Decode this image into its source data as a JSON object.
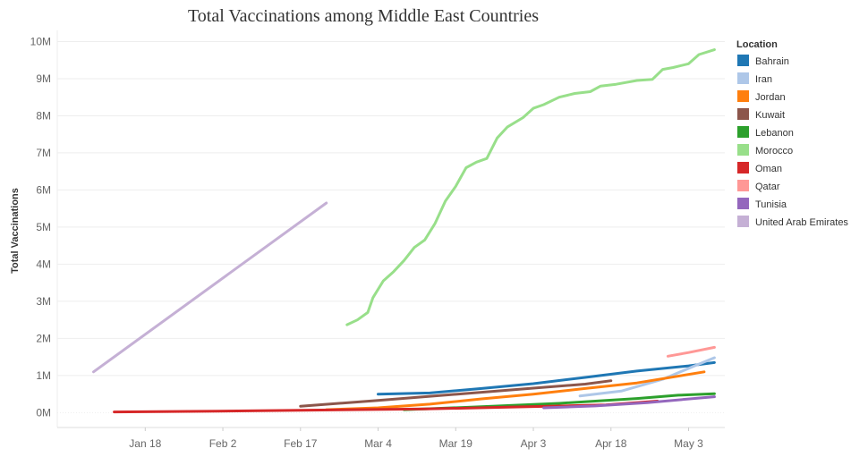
{
  "chart_data": {
    "type": "line",
    "title": "Total Vaccinations among Middle East Countries",
    "ylabel": "Total Vaccinations",
    "xlabel": "",
    "legend_title": "Location",
    "legend_position": "right",
    "grid": true,
    "y_ticks": [
      {
        "value": 0,
        "label": "0M"
      },
      {
        "value": 1000000,
        "label": "1M"
      },
      {
        "value": 2000000,
        "label": "2M"
      },
      {
        "value": 3000000,
        "label": "3M"
      },
      {
        "value": 4000000,
        "label": "4M"
      },
      {
        "value": 5000000,
        "label": "5M"
      },
      {
        "value": 6000000,
        "label": "6M"
      },
      {
        "value": 7000000,
        "label": "7M"
      },
      {
        "value": 8000000,
        "label": "8M"
      },
      {
        "value": 9000000,
        "label": "9M"
      },
      {
        "value": 10000000,
        "label": "10M"
      }
    ],
    "x_ticks": [
      {
        "value": "2021-01-18",
        "label": "Jan 18"
      },
      {
        "value": "2021-02-02",
        "label": "Feb 2"
      },
      {
        "value": "2021-02-17",
        "label": "Feb 17"
      },
      {
        "value": "2021-03-04",
        "label": "Mar 4"
      },
      {
        "value": "2021-03-19",
        "label": "Mar 19"
      },
      {
        "value": "2021-04-03",
        "label": "Apr 3"
      },
      {
        "value": "2021-04-18",
        "label": "Apr 18"
      },
      {
        "value": "2021-05-03",
        "label": "May 3"
      }
    ],
    "xlim": [
      "2021-01-01",
      "2021-05-10"
    ],
    "ylim": [
      -400000,
      10300000
    ],
    "series": [
      {
        "name": "Bahrain",
        "color": "#1f77b4",
        "points": [
          [
            "2021-03-04",
            500000
          ],
          [
            "2021-03-14",
            530000
          ],
          [
            "2021-03-24",
            650000
          ],
          [
            "2021-04-03",
            780000
          ],
          [
            "2021-04-13",
            950000
          ],
          [
            "2021-04-23",
            1120000
          ],
          [
            "2021-05-03",
            1260000
          ],
          [
            "2021-05-08",
            1350000
          ]
        ]
      },
      {
        "name": "Iran",
        "color": "#aec7e8",
        "points": [
          [
            "2021-04-12",
            450000
          ],
          [
            "2021-04-20",
            580000
          ],
          [
            "2021-04-28",
            900000
          ],
          [
            "2021-05-04",
            1250000
          ],
          [
            "2021-05-08",
            1480000
          ]
        ]
      },
      {
        "name": "Jordan",
        "color": "#ff7f0e",
        "points": [
          [
            "2021-02-22",
            80000
          ],
          [
            "2021-03-04",
            130000
          ],
          [
            "2021-03-14",
            230000
          ],
          [
            "2021-03-24",
            370000
          ],
          [
            "2021-04-03",
            500000
          ],
          [
            "2021-04-13",
            650000
          ],
          [
            "2021-04-23",
            800000
          ],
          [
            "2021-05-06",
            1100000
          ]
        ]
      },
      {
        "name": "Kuwait",
        "color": "#8c564b",
        "points": [
          [
            "2021-02-17",
            170000
          ],
          [
            "2021-03-04",
            330000
          ],
          [
            "2021-03-14",
            440000
          ],
          [
            "2021-03-24",
            550000
          ],
          [
            "2021-04-03",
            660000
          ],
          [
            "2021-04-13",
            770000
          ],
          [
            "2021-04-18",
            860000
          ]
        ]
      },
      {
        "name": "Lebanon",
        "color": "#2ca02c",
        "points": [
          [
            "2021-03-09",
            80000
          ],
          [
            "2021-03-24",
            160000
          ],
          [
            "2021-04-08",
            250000
          ],
          [
            "2021-04-23",
            380000
          ],
          [
            "2021-05-01",
            470000
          ],
          [
            "2021-05-08",
            510000
          ]
        ]
      },
      {
        "name": "Morocco",
        "color": "#98df8a",
        "points": [
          [
            "2021-02-26",
            2370000
          ],
          [
            "2021-02-28",
            2500000
          ],
          [
            "2021-03-02",
            2700000
          ],
          [
            "2021-03-03",
            3100000
          ],
          [
            "2021-03-05",
            3550000
          ],
          [
            "2021-03-07",
            3800000
          ],
          [
            "2021-03-09",
            4100000
          ],
          [
            "2021-03-11",
            4450000
          ],
          [
            "2021-03-13",
            4650000
          ],
          [
            "2021-03-15",
            5100000
          ],
          [
            "2021-03-17",
            5700000
          ],
          [
            "2021-03-19",
            6100000
          ],
          [
            "2021-03-21",
            6600000
          ],
          [
            "2021-03-23",
            6750000
          ],
          [
            "2021-03-25",
            6850000
          ],
          [
            "2021-03-27",
            7400000
          ],
          [
            "2021-03-29",
            7700000
          ],
          [
            "2021-04-01",
            7950000
          ],
          [
            "2021-04-03",
            8200000
          ],
          [
            "2021-04-05",
            8300000
          ],
          [
            "2021-04-08",
            8500000
          ],
          [
            "2021-04-11",
            8600000
          ],
          [
            "2021-04-14",
            8650000
          ],
          [
            "2021-04-16",
            8800000
          ],
          [
            "2021-04-19",
            8850000
          ],
          [
            "2021-04-23",
            8950000
          ],
          [
            "2021-04-26",
            8980000
          ],
          [
            "2021-04-28",
            9250000
          ],
          [
            "2021-04-30",
            9300000
          ],
          [
            "2021-05-03",
            9400000
          ],
          [
            "2021-05-05",
            9650000
          ],
          [
            "2021-05-08",
            9780000
          ]
        ]
      },
      {
        "name": "Oman",
        "color": "#d62728",
        "points": [
          [
            "2021-01-12",
            20000
          ],
          [
            "2021-02-01",
            40000
          ],
          [
            "2021-02-21",
            70000
          ],
          [
            "2021-03-13",
            100000
          ],
          [
            "2021-04-02",
            160000
          ],
          [
            "2021-04-17",
            210000
          ],
          [
            "2021-04-27",
            310000
          ]
        ]
      },
      {
        "name": "Qatar",
        "color": "#ff9896",
        "points": [
          [
            "2021-04-29",
            1520000
          ],
          [
            "2021-05-03",
            1620000
          ],
          [
            "2021-05-08",
            1760000
          ]
        ]
      },
      {
        "name": "Tunisia",
        "color": "#9467bd",
        "points": [
          [
            "2021-04-05",
            130000
          ],
          [
            "2021-04-15",
            180000
          ],
          [
            "2021-04-25",
            270000
          ],
          [
            "2021-05-08",
            430000
          ]
        ]
      },
      {
        "name": "United Arab Emirates",
        "color": "#c5b0d5",
        "points": [
          [
            "2021-01-08",
            1100000
          ],
          [
            "2021-02-22",
            5650000
          ]
        ]
      }
    ]
  }
}
